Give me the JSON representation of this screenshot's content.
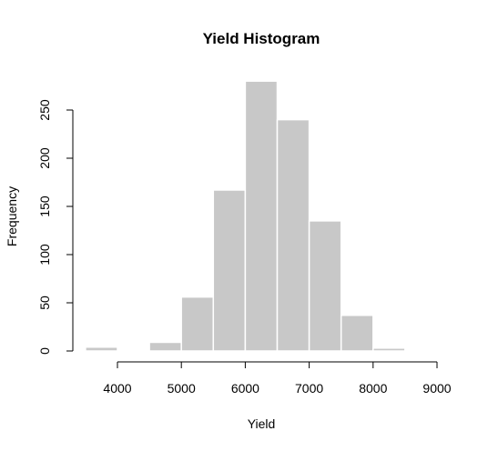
{
  "chart_data": {
    "type": "histogram",
    "title": "Yield Histogram",
    "xlabel": "Yield",
    "ylabel": "Frequency",
    "bins": [
      {
        "start": 3500,
        "end": 4000,
        "count": 4
      },
      {
        "start": 4000,
        "end": 4500,
        "count": 0
      },
      {
        "start": 4500,
        "end": 5000,
        "count": 9
      },
      {
        "start": 5000,
        "end": 5500,
        "count": 56
      },
      {
        "start": 5500,
        "end": 6000,
        "count": 167
      },
      {
        "start": 6000,
        "end": 6500,
        "count": 280
      },
      {
        "start": 6500,
        "end": 7000,
        "count": 240
      },
      {
        "start": 7000,
        "end": 7500,
        "count": 135
      },
      {
        "start": 7500,
        "end": 8000,
        "count": 37
      },
      {
        "start": 8000,
        "end": 8500,
        "count": 3
      },
      {
        "start": 8500,
        "end": 9000,
        "count": 1
      }
    ],
    "xticks": [
      4000,
      5000,
      6000,
      7000,
      8000,
      9000
    ],
    "yticks": [
      0,
      50,
      100,
      150,
      200,
      250
    ],
    "xlim": [
      3500,
      9000
    ],
    "ylim": [
      0,
      280
    ],
    "grid": false,
    "legend": "none",
    "colors": {
      "bar_fill": "#c8c8c8",
      "bar_border": "#ffffff",
      "axis": "#000000"
    }
  }
}
